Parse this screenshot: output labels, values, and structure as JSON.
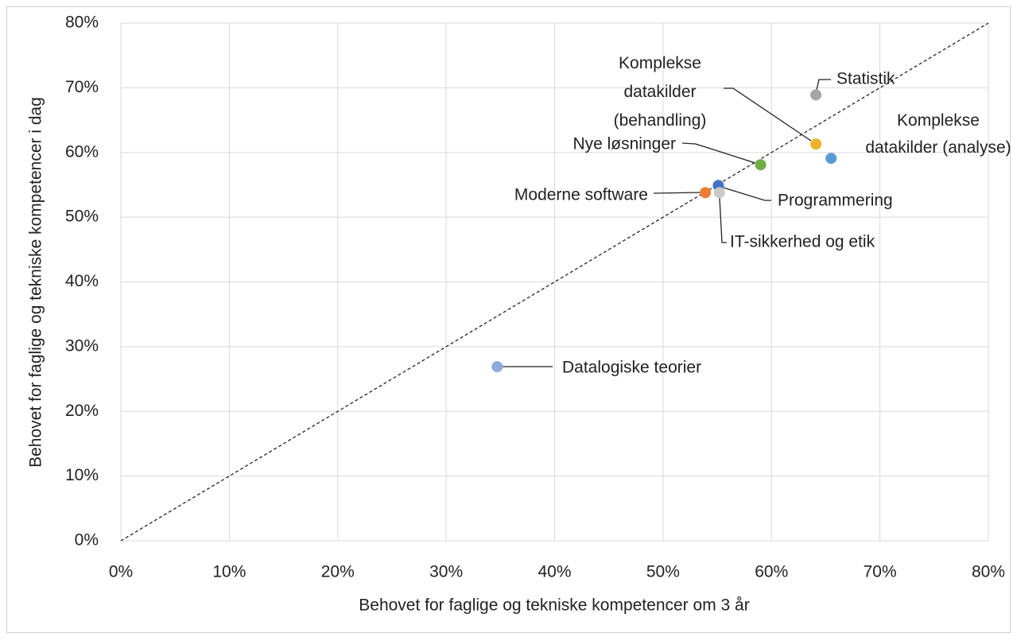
{
  "chart_data": {
    "type": "scatter",
    "xlabel": "Behovet for faglige og tekniske kompetencer om 3 år",
    "ylabel": "Behovet for faglige og tekniske kompetencer i dag",
    "xlim": [
      0,
      80
    ],
    "ylim": [
      0,
      80
    ],
    "xticks": [
      {
        "value": 0,
        "label": "0%"
      },
      {
        "value": 10,
        "label": "10%"
      },
      {
        "value": 20,
        "label": "20%"
      },
      {
        "value": 30,
        "label": "30%"
      },
      {
        "value": 40,
        "label": "40%"
      },
      {
        "value": 50,
        "label": "50%"
      },
      {
        "value": 60,
        "label": "60%"
      },
      {
        "value": 70,
        "label": "70%"
      },
      {
        "value": 80,
        "label": "80%"
      }
    ],
    "yticks": [
      {
        "value": 0,
        "label": "0%"
      },
      {
        "value": 10,
        "label": "10%"
      },
      {
        "value": 20,
        "label": "20%"
      },
      {
        "value": 30,
        "label": "30%"
      },
      {
        "value": 40,
        "label": "40%"
      },
      {
        "value": 50,
        "label": "50%"
      },
      {
        "value": 60,
        "label": "60%"
      },
      {
        "value": 70,
        "label": "70%"
      },
      {
        "value": 80,
        "label": "80%"
      }
    ],
    "grid": true,
    "points": [
      {
        "label": "Statistik",
        "x": 64.1,
        "y": 68.9,
        "color": "#a5a5a5"
      },
      {
        "label": "Komplekse datakilder (behandling)",
        "x": 64.1,
        "y": 61.3,
        "color": "#e9b52e"
      },
      {
        "label": "Komplekse datakilder (analyse)",
        "x": 65.5,
        "y": 59.1,
        "color": "#5b9bd5"
      },
      {
        "label": "Nye løsninger",
        "x": 59.0,
        "y": 58.1,
        "color": "#70ad47"
      },
      {
        "label": "Programmering",
        "x": 55.1,
        "y": 54.9,
        "color": "#4472c4"
      },
      {
        "label": "Moderne software",
        "x": 53.9,
        "y": 53.8,
        "color": "#ed7d31"
      },
      {
        "label": "IT-sikkerhed og etik",
        "x": 55.2,
        "y": 53.8,
        "color": "#c9c9c9"
      },
      {
        "label": "Datalogiske teorier",
        "x": 34.7,
        "y": 26.9,
        "color": "#8faadc"
      }
    ]
  }
}
